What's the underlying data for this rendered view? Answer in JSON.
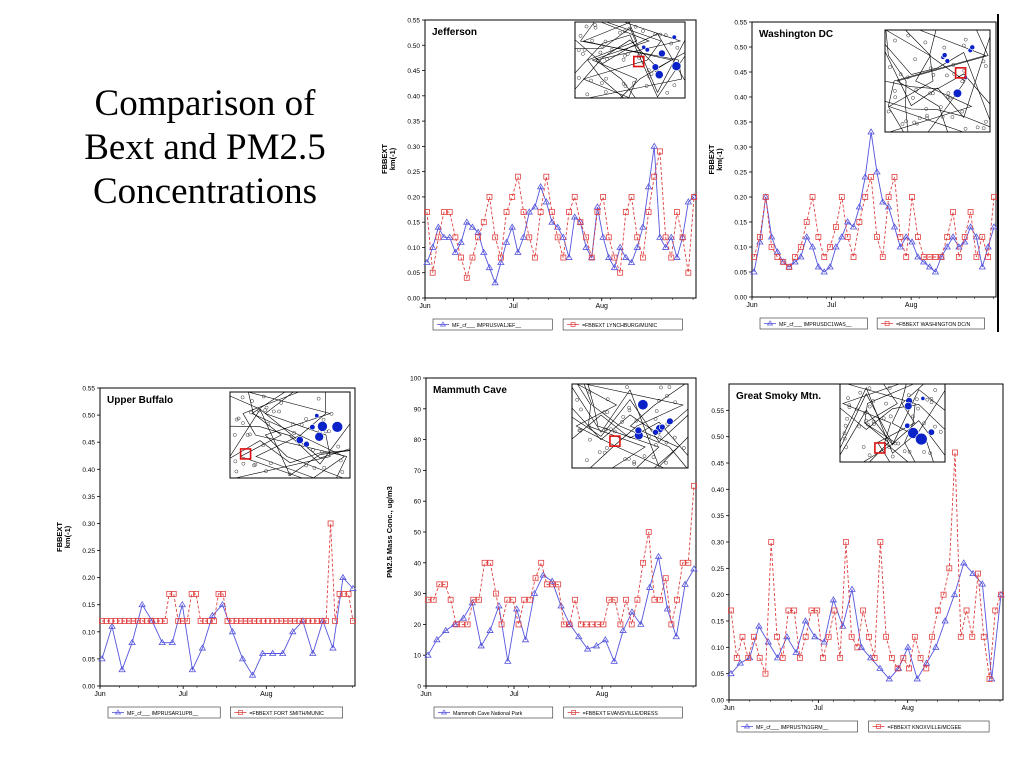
{
  "slide": {
    "title_lines": [
      "Comparison of",
      "Bext and PM2.5",
      "Concentrations"
    ]
  },
  "colors": {
    "model": "#5555dd",
    "obs": "#e04040",
    "site_dot": "#0a22c8",
    "highlight": "#dd1111"
  },
  "chart_data": [
    {
      "id": "jefferson",
      "type": "line",
      "title": "Jefferson",
      "ylabel": [
        "FBBEXT",
        "km(-1)"
      ],
      "ylim": [
        0,
        0.55
      ],
      "yticks": [
        "0.00",
        "0.05",
        "0.10",
        "0.15",
        "0.20",
        "0.25",
        "0.30",
        "0.35",
        "0.40",
        "0.45",
        "0.50",
        "0.55"
      ],
      "xlabels": [
        "Jun",
        "Jul",
        "Aug"
      ],
      "legend": [
        "MF_cf___ IMPRUSVA1JEF__",
        "=FBBEXT LYNCHBURG/MUNIC"
      ],
      "series": [
        {
          "name": "MF_cf___ IMPRUSVA1JEF__",
          "values": [
            0.07,
            0.1,
            0.14,
            0.12,
            0.12,
            0.09,
            0.11,
            0.15,
            0.14,
            0.13,
            0.09,
            0.06,
            0.03,
            0.07,
            0.11,
            0.14,
            0.09,
            0.12,
            0.17,
            0.18,
            0.22,
            0.19,
            0.15,
            0.14,
            0.12,
            0.08,
            0.16,
            0.15,
            0.1,
            0.08,
            0.18,
            0.12,
            0.08,
            0.06,
            0.1,
            0.08,
            0.07,
            0.1,
            0.14,
            0.22,
            0.3,
            0.12,
            0.1,
            0.12,
            0.08,
            0.12,
            0.19,
            0.2
          ]
        },
        {
          "name": "=FBBEXT LYNCHBURG/MUNIC",
          "values": [
            0.17,
            0.05,
            0.12,
            0.17,
            0.17,
            0.12,
            0.08,
            0.04,
            0.08,
            0.12,
            0.15,
            0.2,
            0.12,
            0.08,
            0.17,
            0.2,
            0.24,
            0.17,
            0.12,
            0.08,
            0.17,
            0.24,
            0.17,
            0.12,
            0.08,
            0.17,
            0.2,
            0.15,
            0.12,
            0.08,
            0.17,
            0.2,
            0.12,
            0.08,
            0.05,
            0.17,
            0.2,
            0.12,
            0.08,
            0.17,
            0.24,
            0.29,
            0.12,
            0.08,
            0.17,
            0.12,
            0.05,
            0.2
          ]
        }
      ]
    },
    {
      "id": "washington",
      "type": "line",
      "title": "Washington DC",
      "ylabel": [
        "FBBEXT",
        "km(-1)"
      ],
      "ylim": [
        0,
        0.55
      ],
      "yticks": [
        "0.00",
        "0.05",
        "0.10",
        "0.15",
        "0.20",
        "0.25",
        "0.30",
        "0.35",
        "0.40",
        "0.45",
        "0.50",
        "0.55"
      ],
      "xlabels": [
        "Jun",
        "Jul",
        "Aug"
      ],
      "legend": [
        "MF_cf___ IMPRUSDC1WAS__",
        "=FBBEXT WASHINGTON DC/N"
      ],
      "series": [
        {
          "name": "MF_cf___ IMPRUSDC1WAS__",
          "values": [
            0.05,
            0.11,
            0.2,
            0.12,
            0.09,
            0.07,
            0.06,
            0.07,
            0.08,
            0.12,
            0.1,
            0.06,
            0.05,
            0.06,
            0.1,
            0.12,
            0.15,
            0.14,
            0.18,
            0.24,
            0.33,
            0.25,
            0.19,
            0.18,
            0.14,
            0.1,
            0.12,
            0.11,
            0.08,
            0.07,
            0.06,
            0.05,
            0.08,
            0.1,
            0.12,
            0.1,
            0.11,
            0.14,
            0.12,
            0.06,
            0.1,
            0.14
          ]
        },
        {
          "name": "=FBBEXT WASHINGTON DC/N",
          "values": [
            0.08,
            0.12,
            0.2,
            0.1,
            0.08,
            0.07,
            0.06,
            0.08,
            0.1,
            0.15,
            0.2,
            0.12,
            0.08,
            0.1,
            0.14,
            0.2,
            0.12,
            0.08,
            0.15,
            0.2,
            0.24,
            0.12,
            0.08,
            0.2,
            0.24,
            0.12,
            0.08,
            0.2,
            0.12,
            0.08,
            0.08,
            0.08,
            0.08,
            0.12,
            0.17,
            0.08,
            0.12,
            0.17,
            0.08,
            0.12,
            0.08,
            0.2
          ]
        }
      ]
    },
    {
      "id": "upper-buffalo",
      "type": "line",
      "title": "Upper Buffalo",
      "ylabel": [
        "FBBEXT",
        "km(-1)"
      ],
      "ylim": [
        0,
        0.55
      ],
      "yticks": [
        "0.00",
        "0.05",
        "0.10",
        "0.15",
        "0.20",
        "0.25",
        "0.30",
        "0.35",
        "0.40",
        "0.45",
        "0.50",
        "0.55"
      ],
      "xlabels": [
        "Jun",
        "Jul",
        "Aug"
      ],
      "legend": [
        "MF_cf___ IMPRUSAR1UPB__",
        "=FBBEXT FORT SMITH/MUNIC"
      ],
      "series": [
        {
          "name": "MF_cf___ IMPRUSAR1UPB__",
          "values": [
            0.05,
            0.11,
            0.03,
            0.08,
            0.15,
            0.12,
            0.08,
            0.08,
            0.15,
            0.03,
            0.07,
            0.13,
            0.15,
            0.1,
            0.05,
            0.02,
            0.06,
            0.06,
            0.06,
            0.1,
            0.12,
            0.06,
            0.12,
            0.07,
            0.2,
            0.18
          ]
        },
        {
          "name": "=FBBEXT FORT SMITH/MUNIC",
          "values": [
            0.12,
            0.12,
            0.12,
            0.12,
            0.12,
            0.12,
            0.12,
            0.12,
            0.12,
            0.12,
            0.12,
            0.12,
            0.12,
            0.12,
            0.12,
            0.17,
            0.17,
            0.12,
            0.12,
            0.12,
            0.17,
            0.17,
            0.12,
            0.12,
            0.12,
            0.12,
            0.17,
            0.17,
            0.12,
            0.12,
            0.12,
            0.12,
            0.12,
            0.12,
            0.12,
            0.12,
            0.12,
            0.12,
            0.12,
            0.12,
            0.12,
            0.12,
            0.12,
            0.12,
            0.12,
            0.12,
            0.12,
            0.12,
            0.12,
            0.12,
            0.12,
            0.3,
            0.12,
            0.17,
            0.17,
            0.17,
            0.12
          ]
        }
      ]
    },
    {
      "id": "mammoth-cave",
      "type": "line",
      "title": "Mammuth Cave",
      "ylabel": [
        "PM2.5 Mass Conc., ug/m3"
      ],
      "ylim": [
        0,
        100
      ],
      "yticks": [
        "0",
        "10",
        "20",
        "30",
        "40",
        "50",
        "60",
        "70",
        "80",
        "90",
        "100"
      ],
      "xlabels": [
        "Jun",
        "Jul",
        "Aug"
      ],
      "legend": [
        "Mammoth Cave National Park",
        "=FBBEXT EVANSVILLE/DRESS"
      ],
      "series": [
        {
          "name": "Mammoth Cave National Park",
          "values": [
            10,
            15,
            18,
            20,
            22,
            27,
            13,
            18,
            26,
            8,
            25,
            15,
            30,
            36,
            34,
            26,
            20,
            16,
            12,
            13,
            15,
            8,
            18,
            24,
            20,
            32,
            42,
            25,
            16,
            33,
            38
          ]
        },
        {
          "name": "=FBBEXT EVANSVILLE/DRESS",
          "values": [
            28,
            28,
            33,
            33,
            28,
            20,
            20,
            20,
            28,
            28,
            40,
            40,
            30,
            20,
            28,
            28,
            20,
            28,
            28,
            35,
            40,
            33,
            33,
            33,
            20,
            20,
            28,
            20,
            20,
            20,
            20,
            20,
            28,
            28,
            20,
            28,
            20,
            28,
            40,
            50,
            28,
            28,
            35,
            20,
            28,
            40,
            40,
            65
          ]
        }
      ]
    },
    {
      "id": "great-smoky",
      "type": "line",
      "title": "Great Smoky Mtn.",
      "ylabel": [],
      "ylim": [
        0,
        0.6
      ],
      "yticks": [
        "0.00",
        "0.05",
        "0.10",
        "0.15",
        "0.20",
        "0.25",
        "0.30",
        "0.35",
        "0.40",
        "0.45",
        "0.50",
        "0.55"
      ],
      "xlabels": [
        "Jun",
        "Jul",
        "Aug"
      ],
      "legend": [
        "MF_cf___ IMPRUSTN1GRM__",
        "=FBBEXT KNOXVILLE/MCGEE"
      ],
      "series": [
        {
          "name": "MF_cf___ IMPRUSTN1GRM__",
          "values": [
            0.05,
            0.07,
            0.08,
            0.14,
            0.11,
            0.08,
            0.12,
            0.09,
            0.15,
            0.12,
            0.11,
            0.19,
            0.14,
            0.21,
            0.1,
            0.08,
            0.06,
            0.04,
            0.06,
            0.1,
            0.04,
            0.07,
            0.1,
            0.15,
            0.2,
            0.26,
            0.24,
            0.22,
            0.04,
            0.2
          ]
        },
        {
          "name": "=FBBEXT KNOXVILLE/MCGEE",
          "values": [
            0.17,
            0.08,
            0.12,
            0.08,
            0.12,
            0.08,
            0.05,
            0.3,
            0.12,
            0.08,
            0.17,
            0.17,
            0.08,
            0.12,
            0.17,
            0.17,
            0.08,
            0.12,
            0.17,
            0.08,
            0.3,
            0.12,
            0.1,
            0.17,
            0.12,
            0.08,
            0.3,
            0.12,
            0.08,
            0.06,
            0.08,
            0.06,
            0.12,
            0.08,
            0.06,
            0.12,
            0.17,
            0.2,
            0.25,
            0.47,
            0.12,
            0.17,
            0.12,
            0.24,
            0.12,
            0.04,
            0.17,
            0.2
          ]
        }
      ]
    }
  ]
}
